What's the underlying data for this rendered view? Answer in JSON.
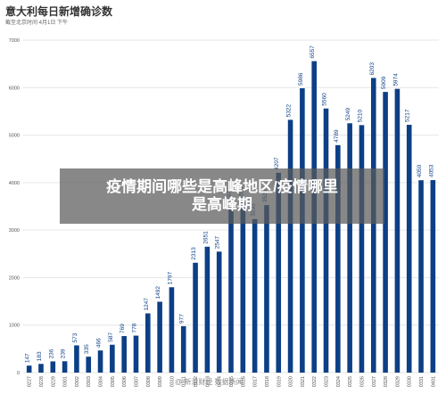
{
  "header": {
    "title": "意大利每日新增确诊数",
    "subtitle": "截至北京时间 4月1日 下午"
  },
  "banner": {
    "line1": "疫情期间哪些是高峰地区/疫情哪里",
    "line2": "是高峰期"
  },
  "watermark": "@ 新浪财经 数据新闻",
  "colors": {
    "bar": "#0c3f86",
    "grid": "#e6e6e6",
    "tick": "#555555"
  },
  "chart_data": {
    "type": "bar",
    "title": "意大利每日新增确诊数",
    "xlabel": "",
    "ylabel": "",
    "ylim": [
      0,
      7000
    ],
    "yticks": [
      0,
      1000,
      2000,
      3000,
      4000,
      5000,
      6000,
      7000
    ],
    "grid": true,
    "categories": [
      "0227",
      "0228",
      "0229",
      "0301",
      "0302",
      "0303",
      "0304",
      "0305",
      "0306",
      "0307",
      "0308",
      "0309",
      "0310",
      "0311",
      "0312",
      "0313",
      "0314",
      "0315",
      "0316",
      "0317",
      "0318",
      "0319",
      "0320",
      "0321",
      "0322",
      "0323",
      "0324",
      "0325",
      "0326",
      "0327",
      "0328",
      "0329",
      "0330",
      "0331",
      "0401"
    ],
    "values": [
      147,
      183,
      236,
      239,
      573,
      335,
      466,
      587,
      769,
      778,
      1247,
      1492,
      1797,
      977,
      2313,
      2651,
      2547,
      3497,
      3590,
      3233,
      3526,
      4207,
      5322,
      5986,
      6557,
      5560,
      4789,
      5249,
      5210,
      6203,
      5909,
      5974,
      5217,
      4050,
      4053
    ],
    "labels": [
      "147",
      "183",
      "236",
      "239",
      "573",
      "335",
      "466",
      "587",
      "769",
      "778",
      "1247",
      "1492",
      "1797",
      "977",
      "2313",
      "2651",
      "2547",
      "3497",
      "3590",
      "3233",
      "3526",
      "4207",
      "5322",
      "5986",
      "6557",
      "5560",
      "4789",
      "5249",
      "5210",
      "6203",
      "5909",
      "5974",
      "5217",
      "4050",
      "4053"
    ]
  }
}
